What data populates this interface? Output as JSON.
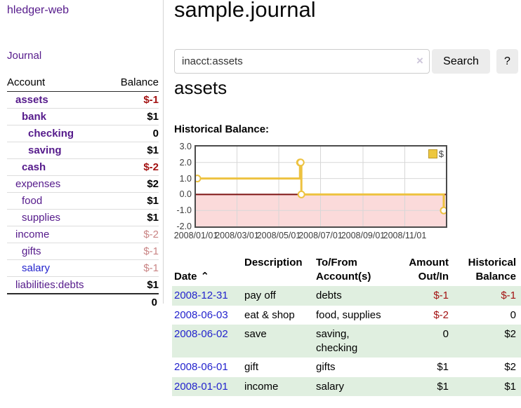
{
  "sidebar": {
    "app_title": "hledger-web",
    "nav": {
      "journal_label": "Journal"
    },
    "accounts_header": {
      "account": "Account",
      "balance": "Balance"
    },
    "accounts": [
      {
        "name": "assets",
        "balance": "$-1"
      },
      {
        "name": "bank",
        "balance": "$1"
      },
      {
        "name": "checking",
        "balance": "0"
      },
      {
        "name": "saving",
        "balance": "$1"
      },
      {
        "name": "cash",
        "balance": "$-2"
      },
      {
        "name": "expenses",
        "balance": "$2"
      },
      {
        "name": "food",
        "balance": "$1"
      },
      {
        "name": "supplies",
        "balance": "$1"
      },
      {
        "name": "income",
        "balance": "$-2"
      },
      {
        "name": "gifts",
        "balance": "$-1"
      },
      {
        "name": "salary",
        "balance": "$-1"
      },
      {
        "name": "liabilities:debts",
        "balance": "$1"
      }
    ],
    "total": "0"
  },
  "header": {
    "title": "sample.journal"
  },
  "search": {
    "value": "inacct:assets",
    "clear_icon": "×",
    "search_label": "Search",
    "help_label": "?"
  },
  "account_page": {
    "title": "assets",
    "chart_label": "Historical Balance:"
  },
  "chart_data": {
    "type": "line",
    "title": "Historical Balance",
    "series": [
      {
        "name": "$",
        "color": "#EDC240",
        "step": true,
        "points": [
          [
            "2008-01-01",
            1
          ],
          [
            "2008-06-01",
            2
          ],
          [
            "2008-06-02",
            2
          ],
          [
            "2008-06-03",
            0
          ],
          [
            "2008-12-31",
            -1
          ]
        ]
      }
    ],
    "x_range": [
      "2008-01-01",
      "2008-12-31"
    ],
    "ylim": [
      -2,
      3
    ],
    "y_ticks": [
      3,
      2,
      1,
      0,
      -1,
      -2
    ],
    "y_tick_labels": [
      "3.0",
      "2.0",
      "1.0",
      "0.0",
      "-1.0",
      "-2.0"
    ],
    "x_ticks": [
      "2008-01-01",
      "2008-03-01",
      "2008-05-01",
      "2008-07-01",
      "2008-09-01",
      "2008-11-01"
    ],
    "x_tick_labels": [
      "2008/01/01",
      "2008/03/01",
      "2008/05/01",
      "2008/07/01",
      "2008/09/01",
      "2008/11/01"
    ],
    "grid": true,
    "legend_position": "top-right",
    "negative_region_color": "#fbdada",
    "zero_line_color": "#7d1212",
    "grid_color": "#d7d7d7"
  },
  "register": {
    "columns": {
      "date": "Date",
      "sort_icon": "⌃",
      "description": "Description",
      "account": "To/From\nAccount(s)",
      "amount": "Amount\nOut/In",
      "balance": "Historical\nBalance"
    },
    "rows": [
      {
        "date": "2008-12-31",
        "description": "pay off",
        "account": "debts",
        "amount": "$-1",
        "balance": "$-1"
      },
      {
        "date": "2008-06-03",
        "description": "eat & shop",
        "account": "food, supplies",
        "amount": "$-2",
        "balance": "0"
      },
      {
        "date": "2008-06-02",
        "description": "save",
        "account": "saving,\nchecking",
        "amount": "0",
        "balance": "$2"
      },
      {
        "date": "2008-06-01",
        "description": "gift",
        "account": "gifts",
        "amount": "$1",
        "balance": "$2"
      },
      {
        "date": "2008-01-01",
        "description": "income",
        "account": "salary",
        "amount": "$1",
        "balance": "$1"
      }
    ]
  }
}
